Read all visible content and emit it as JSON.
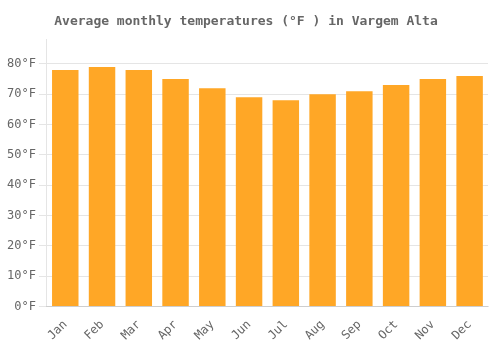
{
  "chart_data": {
    "type": "bar",
    "title": "Average monthly temperatures (°F ) in Vargem Alta",
    "categories": [
      "Jan",
      "Feb",
      "Mar",
      "Apr",
      "May",
      "Jun",
      "Jul",
      "Aug",
      "Sep",
      "Oct",
      "Nov",
      "Dec"
    ],
    "values": [
      78,
      79,
      78,
      75,
      72,
      69,
      68,
      70,
      71,
      73,
      75,
      76
    ],
    "color": "#FFA726",
    "ylim": [
      0,
      88
    ],
    "yticks": [
      {
        "value": 0,
        "label": "0°F"
      },
      {
        "value": 10,
        "label": "10°F"
      },
      {
        "value": 20,
        "label": "20°F"
      },
      {
        "value": 30,
        "label": "30°F"
      },
      {
        "value": 40,
        "label": "40°F"
      },
      {
        "value": 50,
        "label": "50°F"
      },
      {
        "value": 60,
        "label": "60°F"
      },
      {
        "value": 70,
        "label": "70°F"
      },
      {
        "value": 80,
        "label": "80°F"
      }
    ],
    "grid": true
  }
}
